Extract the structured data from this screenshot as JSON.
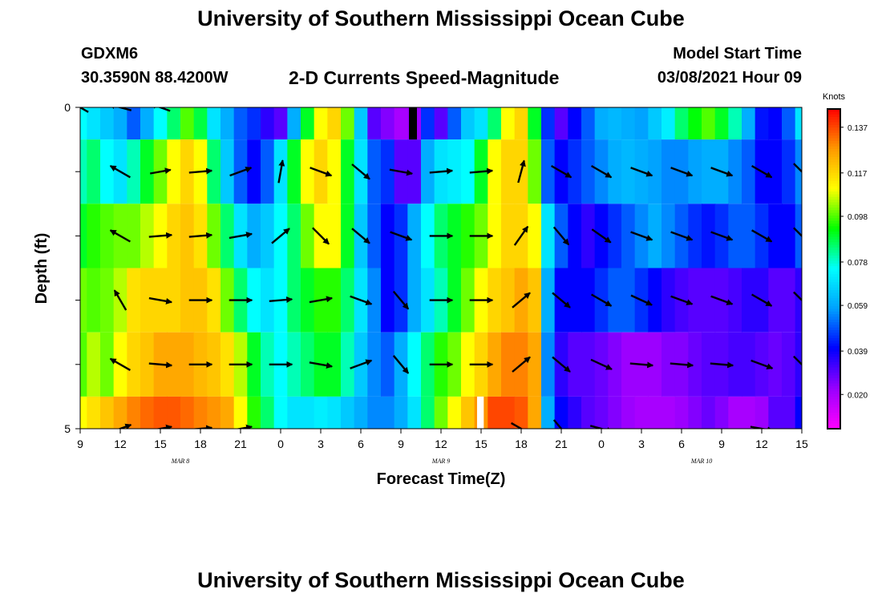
{
  "header": {
    "title": "University of Southern Mississippi Ocean Cube",
    "station": "GDXM6",
    "coords": "30.3590N 88.4200W",
    "subtitle": "2-D Currents Speed-Magnitude",
    "model_start_label": "Model Start Time",
    "model_start_value": "03/08/2021 Hour 09"
  },
  "footer": {
    "title": "University of Southern Mississippi Ocean Cube"
  },
  "chart_data": {
    "type": "heatmap",
    "title": "2-D Currents Speed-Magnitude",
    "xlabel": "Forecast Time(Z)",
    "ylabel": "Depth (ft)",
    "x_hours_from_start": [
      0,
      54
    ],
    "x_tick_labels": [
      "9",
      "12",
      "15",
      "18",
      "21",
      "0",
      "3",
      "6",
      "9",
      "12",
      "15",
      "18",
      "21",
      "0",
      "3",
      "6",
      "9",
      "12",
      "15"
    ],
    "date_labels": [
      {
        "label": "MAR 8",
        "hour": 7.5
      },
      {
        "label": "MAR 9",
        "hour": 27
      },
      {
        "label": "MAR 10",
        "hour": 46.5
      }
    ],
    "y_ticks": [
      {
        "value": 0,
        "label": "0"
      },
      {
        "value": 5,
        "label": "5"
      }
    ],
    "ylim": [
      0,
      5
    ],
    "colorbar": {
      "unit": "Knots",
      "min": 0.005,
      "max": 0.145,
      "tick_values": [
        0.137,
        0.117,
        0.098,
        0.078,
        0.059,
        0.039,
        0.02
      ],
      "tick_labels": [
        "0.137",
        "0.117",
        "0.098",
        "0.078",
        "0.059",
        "0.039",
        "0.020"
      ]
    },
    "colors": {
      "stops": [
        "#ff00ff",
        "#9900ff",
        "#0000ff",
        "#00a0ff",
        "#00ffff",
        "#00ff00",
        "#ffff00",
        "#ff9900",
        "#ff0000"
      ]
    },
    "speed_keyframes_hours": [
      0,
      1,
      2,
      3,
      4,
      5,
      6,
      7,
      8,
      9,
      10,
      11,
      12,
      13,
      14,
      15,
      16,
      17,
      18,
      19,
      20,
      21,
      22,
      23,
      24,
      25,
      26,
      27,
      28,
      29,
      30,
      31,
      32,
      33,
      34,
      35,
      36,
      37,
      38,
      39,
      40,
      41,
      42,
      43,
      44,
      45,
      46,
      47,
      48,
      49,
      50,
      51,
      52,
      53,
      54
    ],
    "layers": [
      {
        "depth_range": [
          0,
          0.5
        ],
        "speed": [
          0.075,
          0.07,
          0.065,
          0.06,
          0.05,
          0.06,
          0.075,
          0.085,
          0.098,
          0.088,
          0.07,
          0.06,
          0.05,
          0.045,
          0.035,
          0.03,
          0.06,
          0.09,
          0.11,
          0.117,
          0.1,
          0.065,
          0.03,
          0.025,
          0.02,
          0.022,
          0.045,
          0.03,
          0.05,
          0.065,
          0.07,
          0.085,
          0.11,
          0.117,
          0.09,
          0.045,
          0.03,
          0.04,
          0.05,
          0.06,
          0.062,
          0.06,
          0.058,
          0.065,
          0.072,
          0.085,
          0.092,
          0.098,
          0.09,
          0.08,
          0.06,
          0.042,
          0.04,
          0.05,
          0.07
        ]
      },
      {
        "depth_range": [
          0.5,
          1.5
        ],
        "speed": [
          0.08,
          0.085,
          0.075,
          0.07,
          0.08,
          0.09,
          0.1,
          0.11,
          0.117,
          0.11,
          0.085,
          0.065,
          0.05,
          0.04,
          0.05,
          0.07,
          0.09,
          0.11,
          0.117,
          0.11,
          0.09,
          0.07,
          0.05,
          0.045,
          0.03,
          0.03,
          0.06,
          0.07,
          0.072,
          0.075,
          0.09,
          0.11,
          0.117,
          0.117,
          0.1,
          0.05,
          0.04,
          0.045,
          0.05,
          0.055,
          0.06,
          0.062,
          0.06,
          0.058,
          0.055,
          0.055,
          0.058,
          0.06,
          0.06,
          0.055,
          0.05,
          0.04,
          0.04,
          0.045,
          0.055
        ]
      },
      {
        "depth_range": [
          1.5,
          2.5
        ],
        "speed": [
          0.09,
          0.095,
          0.098,
          0.1,
          0.1,
          0.105,
          0.11,
          0.117,
          0.12,
          0.115,
          0.1,
          0.085,
          0.07,
          0.06,
          0.065,
          0.075,
          0.085,
          0.1,
          0.11,
          0.11,
          0.09,
          0.065,
          0.05,
          0.04,
          0.045,
          0.06,
          0.075,
          0.085,
          0.09,
          0.095,
          0.1,
          0.11,
          0.117,
          0.117,
          0.11,
          0.07,
          0.05,
          0.04,
          0.035,
          0.04,
          0.045,
          0.05,
          0.055,
          0.06,
          0.055,
          0.05,
          0.045,
          0.042,
          0.045,
          0.05,
          0.05,
          0.045,
          0.04,
          0.04,
          0.05
        ]
      },
      {
        "depth_range": [
          2.5,
          3.5
        ],
        "speed": [
          0.1,
          0.098,
          0.1,
          0.105,
          0.115,
          0.117,
          0.117,
          0.117,
          0.12,
          0.12,
          0.115,
          0.1,
          0.085,
          0.075,
          0.07,
          0.075,
          0.085,
          0.09,
          0.095,
          0.095,
          0.085,
          0.07,
          0.055,
          0.04,
          0.045,
          0.06,
          0.07,
          0.08,
          0.09,
          0.1,
          0.11,
          0.117,
          0.12,
          0.125,
          0.12,
          0.06,
          0.04,
          0.04,
          0.04,
          0.045,
          0.05,
          0.05,
          0.045,
          0.04,
          0.035,
          0.032,
          0.03,
          0.03,
          0.03,
          0.032,
          0.035,
          0.035,
          0.03,
          0.03,
          0.035
        ]
      },
      {
        "depth_range": [
          3.5,
          4.5
        ],
        "speed": [
          0.098,
          0.105,
          0.1,
          0.11,
          0.117,
          0.12,
          0.125,
          0.125,
          0.125,
          0.122,
          0.12,
          0.115,
          0.105,
          0.09,
          0.08,
          0.075,
          0.08,
          0.085,
          0.09,
          0.09,
          0.08,
          0.065,
          0.055,
          0.05,
          0.06,
          0.075,
          0.085,
          0.095,
          0.1,
          0.11,
          0.117,
          0.125,
          0.13,
          0.13,
          0.125,
          0.055,
          0.035,
          0.03,
          0.03,
          0.028,
          0.025,
          0.022,
          0.022,
          0.022,
          0.025,
          0.025,
          0.028,
          0.03,
          0.03,
          0.032,
          0.032,
          0.03,
          0.028,
          0.03,
          0.035
        ]
      },
      {
        "depth_range": [
          4.5,
          5
        ],
        "speed": [
          0.11,
          0.115,
          0.12,
          0.125,
          0.13,
          0.133,
          0.135,
          0.135,
          0.133,
          0.13,
          0.128,
          0.125,
          0.11,
          0.095,
          0.085,
          0.075,
          0.07,
          0.07,
          0.072,
          0.07,
          0.065,
          0.06,
          0.055,
          0.055,
          0.06,
          0.07,
          0.085,
          0.1,
          0.11,
          0.12,
          0.128,
          0.137,
          0.137,
          0.135,
          0.125,
          0.06,
          0.04,
          0.035,
          0.03,
          0.028,
          0.025,
          0.022,
          0.02,
          0.02,
          0.02,
          0.022,
          0.025,
          0.028,
          0.025,
          0.02,
          0.02,
          0.022,
          0.03,
          0.03,
          0.04
        ]
      }
    ],
    "masked_cells": [
      {
        "hours": [
          24.6,
          25.2
        ],
        "depth_range": [
          0,
          0.5
        ],
        "color": "#000000"
      },
      {
        "hours": [
          29.7,
          30.2
        ],
        "depth_range": [
          4.5,
          5
        ],
        "color": "#ffffff"
      }
    ],
    "vectors": {
      "hours": [
        0,
        3,
        6,
        9,
        12,
        15,
        18,
        21,
        24,
        27,
        30,
        33,
        36,
        39,
        42,
        45,
        48,
        51,
        54
      ],
      "depths": [
        0,
        1,
        2,
        3,
        4,
        5
      ],
      "angles_deg": [
        [
          300,
          285,
          290,
          0,
          0,
          0,
          0,
          0,
          0,
          0,
          0,
          0,
          0,
          0,
          0,
          0,
          0,
          0,
          0
        ],
        [
          0,
          300,
          80,
          85,
          70,
          10,
          110,
          130,
          100,
          85,
          85,
          15,
          120,
          120,
          110,
          110,
          110,
          120,
          135
        ],
        [
          0,
          300,
          85,
          85,
          80,
          50,
          135,
          130,
          110,
          90,
          90,
          35,
          140,
          125,
          110,
          110,
          110,
          120,
          135
        ],
        [
          0,
          330,
          100,
          90,
          90,
          85,
          80,
          110,
          140,
          90,
          90,
          50,
          130,
          120,
          115,
          110,
          110,
          120,
          135
        ],
        [
          0,
          300,
          95,
          90,
          90,
          90,
          100,
          70,
          140,
          90,
          90,
          50,
          130,
          115,
          95,
          95,
          95,
          110,
          135
        ],
        [
          0,
          70,
          80,
          85,
          80,
          0,
          0,
          0,
          0,
          0,
          0,
          120,
          140,
          105,
          0,
          0,
          0,
          100,
          0
        ]
      ],
      "magnitudes": [
        [
          0.09,
          0.11,
          0.1,
          0,
          0,
          0,
          0,
          0,
          0,
          0,
          0,
          0,
          0,
          0,
          0,
          0,
          0,
          0,
          0
        ],
        [
          0,
          0.11,
          0.1,
          0.11,
          0.11,
          0.11,
          0.11,
          0.11,
          0.11,
          0.11,
          0.11,
          0.11,
          0.11,
          0.11,
          0.11,
          0.11,
          0.11,
          0.11,
          0.11
        ],
        [
          0,
          0.11,
          0.11,
          0.11,
          0.11,
          0.11,
          0.11,
          0.11,
          0.11,
          0.11,
          0.11,
          0.11,
          0.11,
          0.11,
          0.11,
          0.11,
          0.11,
          0.11,
          0.11
        ],
        [
          0,
          0.11,
          0.11,
          0.11,
          0.11,
          0.11,
          0.11,
          0.11,
          0.11,
          0.11,
          0.11,
          0.11,
          0.11,
          0.11,
          0.11,
          0.11,
          0.11,
          0.11,
          0.11
        ],
        [
          0,
          0.11,
          0.11,
          0.11,
          0.11,
          0.11,
          0.11,
          0.11,
          0.11,
          0.11,
          0.11,
          0.11,
          0.11,
          0.11,
          0.11,
          0.11,
          0.11,
          0.11,
          0.11
        ],
        [
          0,
          0.11,
          0.11,
          0.11,
          0.11,
          0,
          0,
          0,
          0,
          0,
          0,
          0.11,
          0.11,
          0.11,
          0,
          0,
          0,
          0.11,
          0
        ]
      ]
    }
  }
}
